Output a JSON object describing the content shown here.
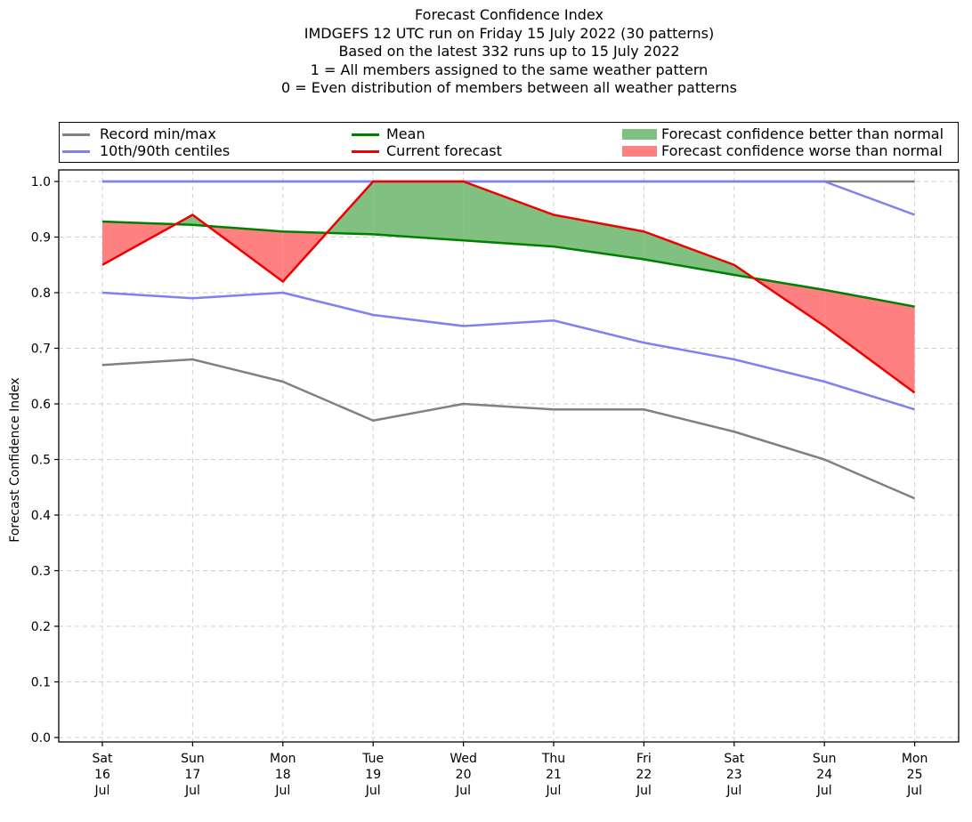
{
  "titles": {
    "line1": "Forecast Confidence Index",
    "line2": "IMDGEFS 12 UTC run on Friday 15 July 2022 (30 patterns)",
    "line3": "Based on the latest 332 runs up to 15 July 2022",
    "line4": "1 = All members assigned to the same weather pattern",
    "line5": "0 = Even distribution of members between all weather patterns"
  },
  "legend": {
    "record": "Record min/max",
    "centiles": "10th/90th centiles",
    "mean": "Mean",
    "current": "Current forecast",
    "better": "Forecast confidence better than normal",
    "worse": "Forecast confidence worse than normal"
  },
  "colors": {
    "record": "#808080",
    "centiles": "#8080f0",
    "mean": "#008000",
    "current": "#f00000",
    "better": "#80c080",
    "worse": "#ff8080",
    "grid": "#d0d0d0"
  },
  "chart_data": {
    "type": "line",
    "ylabel": "Forecast Confidence Index",
    "ylim": [
      0.0,
      1.0
    ],
    "yticks": [
      "0.0",
      "0.1",
      "0.2",
      "0.3",
      "0.4",
      "0.5",
      "0.6",
      "0.7",
      "0.8",
      "0.9",
      "1.0"
    ],
    "categories": [
      [
        "Sat",
        "16",
        "Jul"
      ],
      [
        "Sun",
        "17",
        "Jul"
      ],
      [
        "Mon",
        "18",
        "Jul"
      ],
      [
        "Tue",
        "19",
        "Jul"
      ],
      [
        "Wed",
        "20",
        "Jul"
      ],
      [
        "Thu",
        "21",
        "Jul"
      ],
      [
        "Fri",
        "22",
        "Jul"
      ],
      [
        "Sat",
        "23",
        "Jul"
      ],
      [
        "Sun",
        "24",
        "Jul"
      ],
      [
        "Mon",
        "25",
        "Jul"
      ]
    ],
    "grid": true,
    "legend_position": "top",
    "series": [
      {
        "name": "Record min/max",
        "values": [
          0.67,
          0.68,
          0.64,
          0.57,
          0.6,
          0.59,
          0.59,
          0.55,
          0.5,
          0.43
        ]
      },
      {
        "name": "Record min/max",
        "values": [
          1.0,
          1.0,
          1.0,
          1.0,
          1.0,
          1.0,
          1.0,
          1.0,
          1.0,
          1.0
        ]
      },
      {
        "name": "10th/90th centiles",
        "values": [
          0.8,
          0.79,
          0.8,
          0.76,
          0.74,
          0.75,
          0.71,
          0.68,
          0.64,
          0.59
        ]
      },
      {
        "name": "10th/90th centiles",
        "values": [
          1.0,
          1.0,
          1.0,
          1.0,
          1.0,
          1.0,
          1.0,
          1.0,
          1.0,
          0.94
        ]
      },
      {
        "name": "Mean",
        "values": [
          0.928,
          0.922,
          0.91,
          0.905,
          0.894,
          0.883,
          0.86,
          0.832,
          0.805,
          0.775
        ]
      },
      {
        "name": "Current forecast",
        "values": [
          0.85,
          0.94,
          0.82,
          1.0,
          1.0,
          0.94,
          0.91,
          0.85,
          0.74,
          0.62
        ]
      }
    ]
  }
}
